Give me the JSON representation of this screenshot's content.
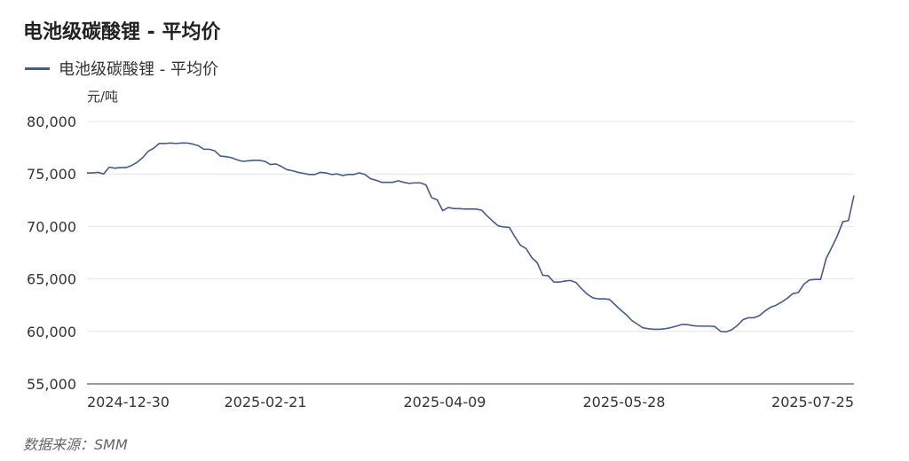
{
  "header": {
    "title": "电池级碳酸锂 - 平均价"
  },
  "footer": {
    "source": "数据来源：SMM"
  },
  "colors": {
    "series": "#465a8c",
    "grid": "#e6e6e6",
    "axis": "#333333"
  },
  "chart_data": {
    "type": "line",
    "title": "电池级碳酸锂 - 平均价",
    "ylabel": "元/吨",
    "xlabel": "",
    "ylim": [
      55000,
      80000
    ],
    "yticks": [
      55000,
      60000,
      65000,
      70000,
      75000,
      80000
    ],
    "ytick_labels": [
      "55,000",
      "60,000",
      "65,000",
      "70,000",
      "75,000",
      "80,000"
    ],
    "xtick_labels": [
      "2024-12-30",
      "2025-02-21",
      "2025-04-09",
      "2025-05-28",
      "2025-07-25"
    ],
    "grid": true,
    "legend_position": "top-left",
    "series": [
      {
        "name": "电池级碳酸锂 - 平均价",
        "values": [
          75100,
          75100,
          75150,
          75000,
          75650,
          75550,
          75600,
          75600,
          75800,
          76100,
          76550,
          77150,
          77450,
          77900,
          77900,
          77950,
          77900,
          77950,
          77950,
          77850,
          77700,
          77350,
          77350,
          77200,
          76700,
          76650,
          76550,
          76350,
          76200,
          76250,
          76300,
          76300,
          76200,
          75900,
          75950,
          75700,
          75400,
          75300,
          75150,
          75050,
          74950,
          74950,
          75150,
          75100,
          74950,
          75000,
          74850,
          74950,
          74950,
          75100,
          74950,
          74550,
          74400,
          74200,
          74200,
          74200,
          74350,
          74200,
          74100,
          74150,
          74150,
          73950,
          72750,
          72550,
          71500,
          71800,
          71700,
          71700,
          71650,
          71650,
          71650,
          71550,
          71000,
          70500,
          70050,
          69950,
          69900,
          69000,
          68200,
          67900,
          67050,
          66550,
          65350,
          65300,
          64700,
          64700,
          64800,
          64850,
          64650,
          64050,
          63550,
          63200,
          63100,
          63100,
          63050,
          62550,
          62050,
          61600,
          61050,
          60700,
          60350,
          60250,
          60200,
          60200,
          60250,
          60350,
          60500,
          60650,
          60650,
          60550,
          60500,
          60500,
          60500,
          60450,
          60000,
          59950,
          60150,
          60550,
          61100,
          61300,
          61300,
          61500,
          61950,
          62300,
          62500,
          62800,
          63150,
          63600,
          63700,
          64500,
          64900,
          64950,
          64950,
          66950,
          68000,
          69100,
          70450,
          70550,
          72950
        ]
      }
    ]
  }
}
